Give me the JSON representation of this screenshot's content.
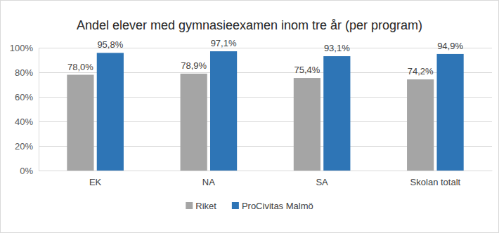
{
  "chart_data": {
    "type": "bar",
    "title": "Andel elever med gymnasieexamen inom tre år (per program)",
    "categories": [
      "EK",
      "NA",
      "SA",
      "Skolan totalt"
    ],
    "series": [
      {
        "name": "Riket",
        "color": "#a5a5a5",
        "values": [
          78.0,
          78.9,
          75.4,
          74.2
        ],
        "value_labels": [
          "78,0%",
          "78,9%",
          "75,4%",
          "74,2%"
        ]
      },
      {
        "name": "ProCivitas Malmö",
        "color": "#2e75b6",
        "values": [
          95.8,
          97.1,
          93.1,
          94.9
        ],
        "value_labels": [
          "95,8%",
          "97,1%",
          "93,1%",
          "94,9%"
        ]
      }
    ],
    "ylim": [
      0,
      100
    ],
    "yticks": [
      {
        "value": 0,
        "label": "0%"
      },
      {
        "value": 20,
        "label": "20%"
      },
      {
        "value": 40,
        "label": "40%"
      },
      {
        "value": 60,
        "label": "60%"
      },
      {
        "value": 80,
        "label": "80%"
      },
      {
        "value": 100,
        "label": "100%"
      }
    ],
    "grid": true,
    "data_labels": true,
    "legend": "bottom"
  }
}
